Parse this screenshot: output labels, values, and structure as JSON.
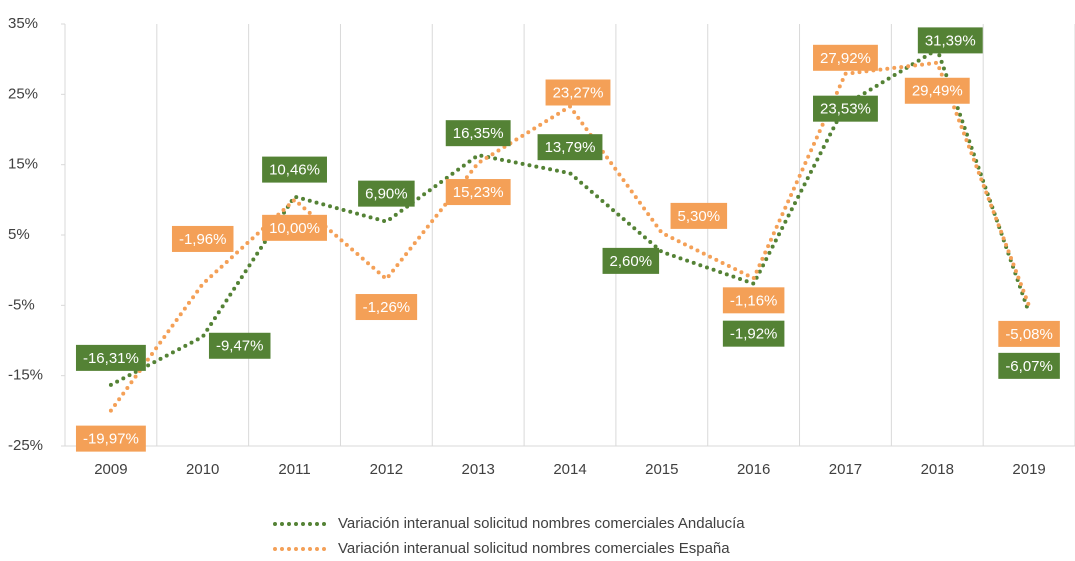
{
  "chart_data": {
    "type": "line",
    "categories": [
      "2009",
      "2010",
      "2011",
      "2012",
      "2013",
      "2014",
      "2015",
      "2016",
      "2017",
      "2018",
      "2019"
    ],
    "series": [
      {
        "name": "Variación interanual solicitud nombres comerciales Andalucía",
        "color": "#548235",
        "values": [
          -16.31,
          -9.47,
          10.46,
          6.9,
          16.35,
          13.79,
          2.6,
          -1.92,
          23.53,
          31.39,
          -6.07
        ],
        "value_labels": [
          "-16,31%",
          "-9,47%",
          "10,46%",
          "6,90%",
          "16,35%",
          "13,79%",
          "2,60%",
          "-1,92%",
          "23,53%",
          "31,39%",
          "-6,07%"
        ]
      },
      {
        "name": "Variación interanual solicitud nombres comerciales España",
        "color": "#f4a057",
        "values": [
          -19.97,
          -1.96,
          10.0,
          -1.26,
          15.23,
          23.27,
          5.3,
          -1.16,
          27.92,
          29.49,
          -5.08
        ],
        "value_labels": [
          "-19,97%",
          "-1,96%",
          "10,00%",
          "-1,26%",
          "15,23%",
          "23,27%",
          "5,30%",
          "-1,16%",
          "27,92%",
          "29,49%",
          "-5,08%"
        ]
      }
    ],
    "ylim": [
      -25,
      35
    ],
    "yticks": [
      {
        "value": -25,
        "label": "-25%"
      },
      {
        "value": -15,
        "label": "-15%"
      },
      {
        "value": -5,
        "label": "-5%"
      },
      {
        "value": 5,
        "label": "5%"
      },
      {
        "value": 15,
        "label": "15%"
      },
      {
        "value": 25,
        "label": "25%"
      },
      {
        "value": 35,
        "label": "35%"
      }
    ],
    "legend": "bottom"
  }
}
